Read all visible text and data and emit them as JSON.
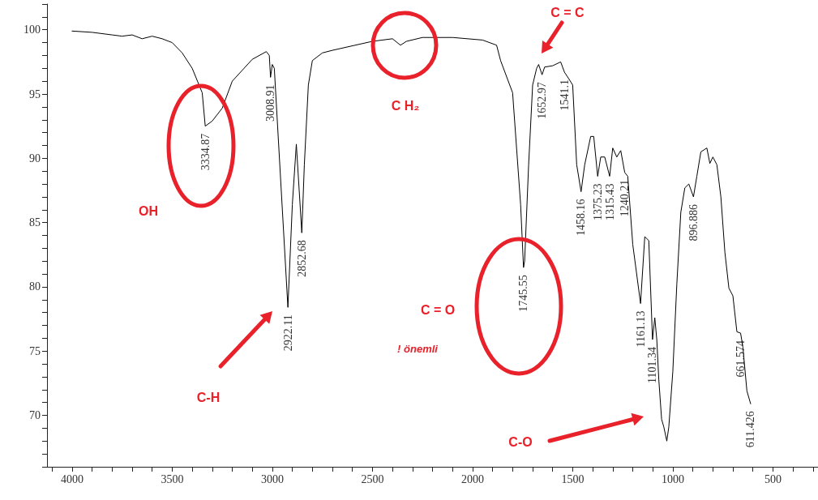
{
  "chart_data": {
    "type": "line",
    "grid": false,
    "x": [
      4000,
      3900,
      3800,
      3750,
      3700,
      3650,
      3600,
      3550,
      3500,
      3450,
      3400,
      3350,
      3334.87,
      3300,
      3250,
      3200,
      3100,
      3030,
      3015,
      3008.91,
      3000,
      2990,
      2922.11,
      2900,
      2880,
      2852.68,
      2840,
      2820,
      2800,
      2750,
      2700,
      2500,
      2400,
      2360,
      2330,
      2250,
      2100,
      1950,
      1880,
      1860,
      1800,
      1760,
      1745.55,
      1740,
      1720,
      1700,
      1680,
      1670,
      1652.97,
      1640,
      1600,
      1560,
      1541.1,
      1520,
      1500,
      1480,
      1458.16,
      1440,
      1410,
      1395,
      1375.23,
      1360,
      1340,
      1315.43,
      1300,
      1280,
      1260,
      1240.21,
      1225,
      1200,
      1161.13,
      1140,
      1120,
      1101.34,
      1090,
      1080,
      1070,
      1056,
      1045,
      1030,
      1020,
      1000,
      980,
      960,
      940,
      920,
      896.886,
      880,
      860,
      830,
      815,
      800,
      780,
      760,
      740,
      720,
      700,
      680,
      661.574,
      650,
      630,
      611.426
    ],
    "series": [
      {
        "color": "#000000",
        "values": [
          99.9,
          99.8,
          99.6,
          99.5,
          99.6,
          99.3,
          99.5,
          99.3,
          99,
          98.2,
          97,
          95.1,
          92.5,
          92.9,
          93.9,
          96,
          97.7,
          98.3,
          98,
          96.3,
          97.3,
          97,
          78.4,
          86.4,
          91.1,
          84.2,
          89.5,
          95.7,
          97.6,
          98.2,
          98.4,
          99.1,
          99.3,
          98.8,
          99.1,
          99.4,
          99.4,
          99.2,
          98.8,
          97.6,
          95.1,
          86.4,
          81.5,
          82,
          89.5,
          95.7,
          97,
          97.3,
          96.5,
          97.1,
          97.2,
          97.5,
          96.7,
          96.2,
          95.7,
          89.5,
          87.4,
          89.5,
          91.7,
          91.7,
          88.6,
          90.1,
          90.1,
          88.6,
          90.8,
          90.1,
          90.6,
          88.9,
          88.6,
          83.3,
          78.7,
          83.9,
          83.6,
          75.9,
          77.6,
          75.9,
          72.8,
          69.7,
          69.1,
          68,
          69.1,
          73.4,
          80.2,
          85.8,
          87.7,
          88,
          87,
          88.6,
          90.5,
          90.8,
          89.6,
          90.1,
          89.5,
          87,
          82.7,
          79.9,
          79.3,
          76.5,
          76.4,
          75.3,
          71.9,
          70.9
        ]
      }
    ],
    "xlim": [
      4125,
      275
    ],
    "xticks": [
      4000,
      3500,
      3000,
      2500,
      2000,
      1500,
      1000,
      500
    ],
    "ylim": [
      66,
      102
    ],
    "yticks": [
      70,
      75,
      80,
      85,
      90,
      95,
      100
    ],
    "annotations": [
      {
        "text": "3334.87",
        "x": 3334.87,
        "y": 92.5
      },
      {
        "text": "3008.91",
        "x": 3008.91,
        "y": 96.3
      },
      {
        "text": "2922.11",
        "x": 2922.11,
        "y": 78.4
      },
      {
        "text": "2852.68",
        "x": 2852.68,
        "y": 84.2
      },
      {
        "text": "1745.55",
        "x": 1745.55,
        "y": 81.5
      },
      {
        "text": "1652.97",
        "x": 1652.97,
        "y": 96.5
      },
      {
        "text": "1541.1",
        "x": 1541.1,
        "y": 96.7
      },
      {
        "text": "1458.16",
        "x": 1458.16,
        "y": 87.4
      },
      {
        "text": "1375.23",
        "x": 1375.23,
        "y": 88.6
      },
      {
        "text": "1315.43",
        "x": 1315.43,
        "y": 88.6
      },
      {
        "text": "1240.21",
        "x": 1240.21,
        "y": 88.9
      },
      {
        "text": "1161.13",
        "x": 1161.13,
        "y": 78.7
      },
      {
        "text": "1101.34",
        "x": 1101.34,
        "y": 75.9
      },
      {
        "text": "896.886",
        "x": 896.886,
        "y": 87
      },
      {
        "text": "661.574",
        "x": 661.574,
        "y": 76.4
      },
      {
        "text": "611.426",
        "x": 611.426,
        "y": 70.9
      },
      "OH",
      "C H₂",
      "C = C",
      "C = O",
      "! önemli",
      "C-H",
      "C-O"
    ]
  }
}
